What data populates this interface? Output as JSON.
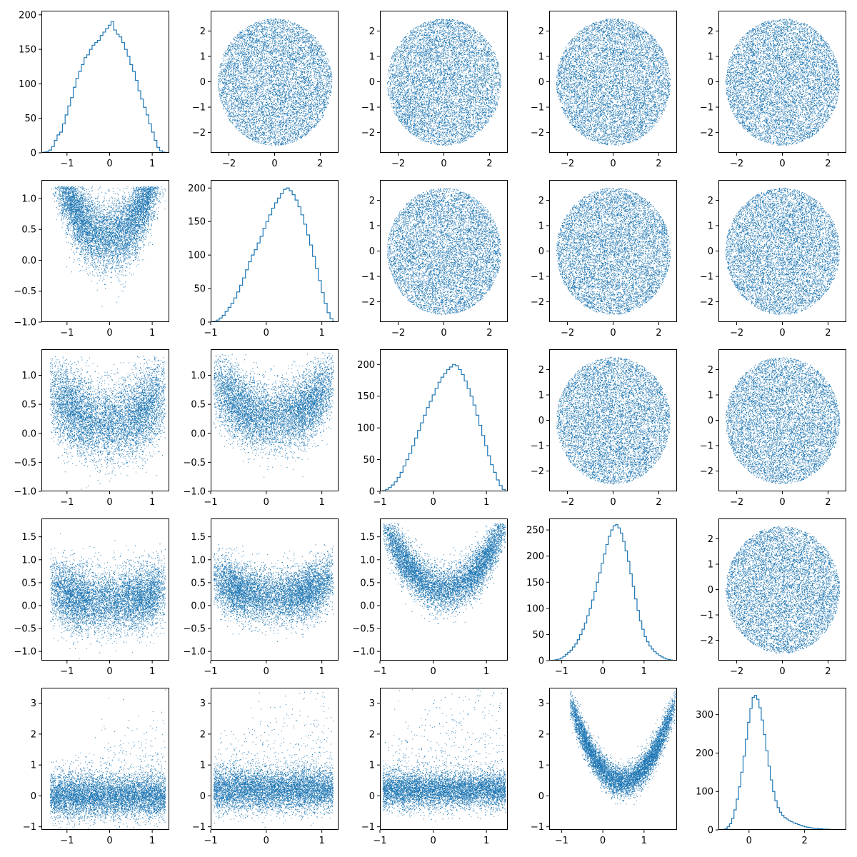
{
  "figure": {
    "rows": 5,
    "cols": 5,
    "color": "#1f77b4"
  },
  "chart_data": [
    {
      "type": "histogram",
      "row": 0,
      "col": 0,
      "title": "",
      "xlabel": "",
      "ylabel": "",
      "xlim": [
        -1.6,
        1.4
      ],
      "ylim": [
        0,
        206
      ],
      "xticks": [
        -1,
        0,
        1
      ],
      "yticks": [
        0,
        50,
        100,
        150,
        200
      ],
      "bins": {
        "start": -1.55,
        "end": 1.3,
        "counts": [
          1,
          2,
          4,
          9,
          18,
          26,
          30,
          42,
          55,
          68,
          80,
          95,
          108,
          118,
          128,
          138,
          142,
          150,
          156,
          160,
          163,
          170,
          175,
          180,
          185,
          190,
          178,
          172,
          168,
          160,
          150,
          140,
          128,
          118,
          105,
          90,
          78,
          66,
          55,
          42,
          30,
          18,
          8,
          3,
          1
        ]
      }
    },
    {
      "type": "scatter",
      "row": 0,
      "col": 1,
      "xlim": [
        -2.8,
        2.8
      ],
      "ylim": [
        -2.8,
        2.8
      ],
      "xticks": [
        -2,
        0,
        2
      ],
      "yticks": [
        -2,
        -1,
        0,
        1,
        2
      ],
      "dist": "uniform_disk",
      "params": {
        "cx": 0,
        "cy": 0,
        "r": 2.5
      },
      "n": 8000
    },
    {
      "type": "scatter",
      "row": 0,
      "col": 2,
      "xlim": [
        -2.8,
        2.8
      ],
      "ylim": [
        -2.8,
        2.8
      ],
      "xticks": [
        -2,
        0,
        2
      ],
      "yticks": [
        -2,
        -1,
        0,
        1,
        2
      ],
      "dist": "uniform_disk",
      "params": {
        "cx": 0,
        "cy": 0,
        "r": 2.5
      },
      "n": 8000
    },
    {
      "type": "scatter",
      "row": 0,
      "col": 3,
      "xlim": [
        -2.8,
        2.8
      ],
      "ylim": [
        -2.8,
        2.8
      ],
      "xticks": [
        -2,
        0,
        2
      ],
      "yticks": [
        -2,
        -1,
        0,
        1,
        2
      ],
      "dist": "uniform_disk",
      "params": {
        "cx": 0,
        "cy": 0,
        "r": 2.5
      },
      "n": 8000
    },
    {
      "type": "scatter",
      "row": 0,
      "col": 4,
      "xlim": [
        -2.8,
        2.8
      ],
      "ylim": [
        -2.8,
        2.8
      ],
      "xticks": [
        -2,
        0,
        2
      ],
      "yticks": [
        -2,
        -1,
        0,
        1,
        2
      ],
      "dist": "uniform_disk",
      "params": {
        "cx": 0,
        "cy": 0,
        "r": 2.5
      },
      "n": 8000
    },
    {
      "type": "scatter",
      "row": 1,
      "col": 0,
      "xlim": [
        -1.6,
        1.4
      ],
      "ylim": [
        -1.0,
        1.3
      ],
      "xticks": [
        -1,
        0,
        1
      ],
      "yticks": [
        -1.0,
        -0.5,
        0.0,
        0.5,
        1.0
      ],
      "dist": "bowl",
      "params": {
        "xa": -1.4,
        "xb": 1.3,
        "a": 0.35,
        "b": 0.55,
        "c": 0.3,
        "d": 0.8,
        "top": 1.2
      },
      "n": 7000
    },
    {
      "type": "histogram",
      "row": 1,
      "col": 1,
      "xlim": [
        -1.0,
        1.3
      ],
      "ylim": [
        0,
        212
      ],
      "xticks": [
        -1,
        0,
        1
      ],
      "yticks": [
        0,
        50,
        100,
        150,
        200
      ],
      "bins": {
        "start": -0.95,
        "end": 1.2,
        "counts": [
          1,
          3,
          6,
          10,
          16,
          22,
          28,
          36,
          45,
          55,
          66,
          78,
          90,
          100,
          108,
          118,
          128,
          140,
          150,
          160,
          170,
          178,
          185,
          192,
          198,
          200,
          196,
          190,
          182,
          172,
          160,
          146,
          130,
          115,
          98,
          80,
          62,
          44,
          28,
          14,
          5
        ]
      }
    },
    {
      "type": "scatter",
      "row": 1,
      "col": 2,
      "xlim": [
        -2.8,
        2.8
      ],
      "ylim": [
        -2.8,
        2.8
      ],
      "xticks": [
        -2,
        0,
        2
      ],
      "yticks": [
        -2,
        -1,
        0,
        1,
        2
      ],
      "dist": "uniform_disk",
      "params": {
        "cx": 0,
        "cy": 0,
        "r": 2.5
      },
      "n": 8000
    },
    {
      "type": "scatter",
      "row": 1,
      "col": 3,
      "xlim": [
        -2.8,
        2.8
      ],
      "ylim": [
        -2.8,
        2.8
      ],
      "xticks": [
        -2,
        0,
        2
      ],
      "yticks": [
        -2,
        -1,
        0,
        1,
        2
      ],
      "dist": "uniform_disk",
      "params": {
        "cx": 0,
        "cy": 0,
        "r": 2.5
      },
      "n": 8000
    },
    {
      "type": "scatter",
      "row": 1,
      "col": 4,
      "xlim": [
        -2.8,
        2.8
      ],
      "ylim": [
        -2.8,
        2.8
      ],
      "xticks": [
        -2,
        0,
        2
      ],
      "yticks": [
        -2,
        -1,
        0,
        1,
        2
      ],
      "dist": "uniform_disk",
      "params": {
        "cx": 0,
        "cy": 0,
        "r": 2.5
      },
      "n": 8000
    },
    {
      "type": "scatter",
      "row": 2,
      "col": 0,
      "xlim": [
        -1.6,
        1.4
      ],
      "ylim": [
        -1.0,
        1.45
      ],
      "xticks": [
        -1,
        0,
        1
      ],
      "yticks": [
        -1.0,
        -0.5,
        0.0,
        0.5,
        1.0
      ],
      "dist": "bowl",
      "params": {
        "xa": -1.4,
        "xb": 1.3,
        "a": 0.15,
        "b": 0.65,
        "c": 0.35,
        "d": 0.3,
        "top": 1.35
      },
      "n": 7000
    },
    {
      "type": "scatter",
      "row": 2,
      "col": 1,
      "xlim": [
        -1.0,
        1.3
      ],
      "ylim": [
        -1.0,
        1.45
      ],
      "xticks": [
        -1,
        0,
        1
      ],
      "yticks": [
        -1.0,
        -0.5,
        0.0,
        0.5,
        1.0
      ],
      "dist": "bowl",
      "params": {
        "xa": -0.95,
        "xb": 1.2,
        "a": 0.25,
        "b": 0.6,
        "c": 0.3,
        "d": 0.55,
        "top": 1.4
      },
      "n": 7000
    },
    {
      "type": "histogram",
      "row": 2,
      "col": 2,
      "xlim": [
        -1.0,
        1.4
      ],
      "ylim": [
        0,
        224
      ],
      "xticks": [
        -1,
        0,
        1
      ],
      "yticks": [
        0,
        50,
        100,
        150,
        200
      ],
      "bins": {
        "start": -0.95,
        "end": 1.35,
        "counts": [
          1,
          3,
          6,
          10,
          15,
          22,
          30,
          40,
          50,
          60,
          72,
          84,
          96,
          108,
          120,
          132,
          142,
          152,
          162,
          172,
          180,
          186,
          192,
          196,
          200,
          198,
          192,
          184,
          174,
          162,
          150,
          136,
          120,
          104,
          88,
          72,
          56,
          42,
          30,
          18,
          9,
          3
        ]
      }
    },
    {
      "type": "scatter",
      "row": 2,
      "col": 3,
      "xlim": [
        -2.8,
        2.8
      ],
      "ylim": [
        -2.8,
        2.8
      ],
      "xticks": [
        -2,
        0,
        2
      ],
      "yticks": [
        -2,
        -1,
        0,
        1,
        2
      ],
      "dist": "uniform_disk",
      "params": {
        "cx": 0,
        "cy": 0,
        "r": 2.5
      },
      "n": 8000
    },
    {
      "type": "scatter",
      "row": 2,
      "col": 4,
      "xlim": [
        -2.8,
        2.8
      ],
      "ylim": [
        -2.8,
        2.8
      ],
      "xticks": [
        -2,
        0,
        2
      ],
      "yticks": [
        -2,
        -1,
        0,
        1,
        2
      ],
      "dist": "uniform_disk",
      "params": {
        "cx": 0,
        "cy": 0,
        "r": 2.5
      },
      "n": 8000
    },
    {
      "type": "scatter",
      "row": 3,
      "col": 0,
      "xlim": [
        -1.6,
        1.4
      ],
      "ylim": [
        -1.2,
        1.9
      ],
      "xticks": [
        -1,
        0,
        1
      ],
      "yticks": [
        -1.0,
        -0.5,
        0.0,
        0.5,
        1.0,
        1.5
      ],
      "dist": "bowl",
      "params": {
        "xa": -1.4,
        "xb": 1.3,
        "a": 0.0,
        "b": 1.0,
        "c": 0.35,
        "d": 0.15,
        "top": 1.8
      },
      "n": 7000
    },
    {
      "type": "scatter",
      "row": 3,
      "col": 1,
      "xlim": [
        -1.0,
        1.3
      ],
      "ylim": [
        -1.2,
        1.9
      ],
      "xticks": [
        -1,
        0,
        1
      ],
      "yticks": [
        -1.0,
        -0.5,
        0.0,
        0.5,
        1.0,
        1.5
      ],
      "dist": "bowl",
      "params": {
        "xa": -0.95,
        "xb": 1.2,
        "a": 0.1,
        "b": 0.95,
        "c": 0.3,
        "d": 0.35,
        "top": 1.8
      },
      "n": 7000
    },
    {
      "type": "scatter",
      "row": 3,
      "col": 2,
      "xlim": [
        -1.0,
        1.4
      ],
      "ylim": [
        -1.2,
        1.9
      ],
      "xticks": [
        -1,
        0,
        1
      ],
      "yticks": [
        -1.0,
        -0.5,
        0.0,
        0.5,
        1.0,
        1.5
      ],
      "dist": "bowl",
      "params": {
        "xa": -0.95,
        "xb": 1.35,
        "a": 0.35,
        "b": 0.55,
        "c": 0.25,
        "d": 1.1,
        "top": 1.8
      },
      "n": 7000
    },
    {
      "type": "histogram",
      "row": 3,
      "col": 3,
      "xlim": [
        -1.3,
        1.8
      ],
      "ylim": [
        0,
        272
      ],
      "xticks": [
        -1,
        0,
        1
      ],
      "yticks": [
        0,
        50,
        100,
        150,
        200,
        250
      ],
      "bins": {
        "start": -1.2,
        "end": 1.7,
        "counts": [
          1,
          2,
          3,
          5,
          8,
          12,
          16,
          20,
          26,
          32,
          40,
          50,
          60,
          72,
          86,
          100,
          116,
          132,
          150,
          168,
          186,
          204,
          222,
          238,
          250,
          258,
          260,
          254,
          244,
          228,
          210,
          190,
          166,
          142,
          118,
          96,
          76,
          60,
          46,
          36,
          28,
          22,
          17,
          13,
          10,
          7,
          5,
          3,
          2,
          1
        ]
      }
    },
    {
      "type": "scatter",
      "row": 3,
      "col": 4,
      "xlim": [
        -2.8,
        2.8
      ],
      "ylim": [
        -2.8,
        2.8
      ],
      "xticks": [
        -2,
        0,
        2
      ],
      "yticks": [
        -2,
        -1,
        0,
        1,
        2
      ],
      "dist": "uniform_disk",
      "params": {
        "cx": 0,
        "cy": 0,
        "r": 2.5
      },
      "n": 8000
    },
    {
      "type": "scatter",
      "row": 4,
      "col": 0,
      "xlim": [
        -1.6,
        1.4
      ],
      "ylim": [
        -1.1,
        3.5
      ],
      "xticks": [
        -1,
        0,
        1
      ],
      "yticks": [
        -1,
        0,
        1,
        2,
        3
      ],
      "dist": "skew",
      "params": {
        "xa": -1.4,
        "xb": 1.3,
        "a": 0.0,
        "b": 0.3,
        "c": 0.35,
        "tail": 0.9
      },
      "n": 7000
    },
    {
      "type": "scatter",
      "row": 4,
      "col": 1,
      "xlim": [
        -1.0,
        1.3
      ],
      "ylim": [
        -1.1,
        3.5
      ],
      "xticks": [
        -1,
        0,
        1
      ],
      "yticks": [
        -1,
        0,
        1,
        2,
        3
      ],
      "dist": "skew",
      "params": {
        "xa": -0.95,
        "xb": 1.2,
        "a": 0.2,
        "b": 0.15,
        "c": 0.35,
        "tail": 1.4
      },
      "n": 7000
    },
    {
      "type": "scatter",
      "row": 4,
      "col": 2,
      "xlim": [
        -1.0,
        1.4
      ],
      "ylim": [
        -1.1,
        3.5
      ],
      "xticks": [
        -1,
        0,
        1
      ],
      "yticks": [
        -1,
        0,
        1,
        2,
        3
      ],
      "dist": "skew",
      "params": {
        "xa": -0.95,
        "xb": 1.35,
        "a": 0.2,
        "b": 0.1,
        "c": 0.3,
        "tail": 1.8
      },
      "n": 7000
    },
    {
      "type": "scatter",
      "row": 4,
      "col": 3,
      "xlim": [
        -1.3,
        1.8
      ],
      "ylim": [
        -1.1,
        3.5
      ],
      "xticks": [
        -1,
        0,
        1
      ],
      "yticks": [
        -1,
        0,
        1,
        2,
        3
      ],
      "dist": "bowl",
      "params": {
        "xa": -0.8,
        "xb": 1.75,
        "a": 0.55,
        "b": 0.15,
        "c": 0.25,
        "d": 1.6,
        "top": 3.4
      },
      "n": 7000
    },
    {
      "type": "histogram",
      "row": 4,
      "col": 4,
      "xlim": [
        -1.1,
        3.5
      ],
      "ylim": [
        0,
        370
      ],
      "xticks": [
        0,
        2
      ],
      "yticks": [
        0,
        100,
        200,
        300
      ],
      "bins": {
        "start": -0.95,
        "end": 3.3,
        "counts": [
          1,
          3,
          8,
          16,
          30,
          52,
          80,
          112,
          150,
          192,
          236,
          280,
          316,
          345,
          350,
          340,
          318,
          286,
          248,
          206,
          166,
          130,
          100,
          76,
          58,
          46,
          38,
          32,
          28,
          24,
          21,
          18,
          16,
          14,
          12,
          10,
          8,
          7,
          6,
          5,
          4,
          4,
          3,
          3,
          2,
          2,
          2,
          1,
          1,
          1,
          1,
          1
        ]
      }
    }
  ]
}
